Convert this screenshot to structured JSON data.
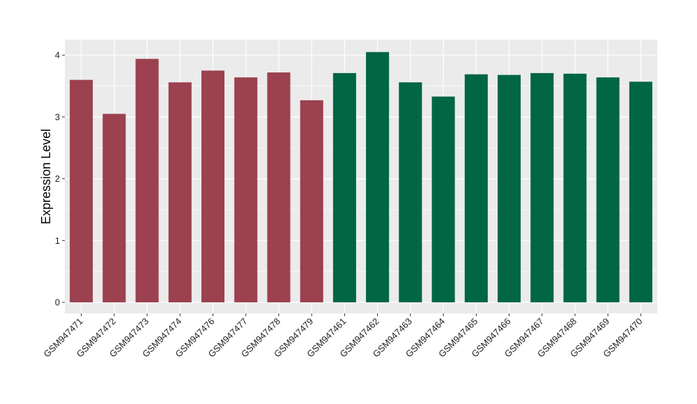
{
  "chart_data": {
    "type": "bar",
    "title": "",
    "xlabel": "",
    "ylabel": "Expression Level",
    "ylim": [
      -0.18,
      4.25
    ],
    "yticks": [
      0,
      1,
      2,
      3,
      4
    ],
    "grid": true,
    "legend": "none",
    "colors": {
      "group1": "#9b414f",
      "group2": "#006644",
      "panel": "#ebebeb",
      "grid": "#ffffff"
    },
    "categories": [
      "GSM947471",
      "GSM947472",
      "GSM947473",
      "GSM947474",
      "GSM947476",
      "GSM947477",
      "GSM947478",
      "GSM947479",
      "GSM947461",
      "GSM947462",
      "GSM947463",
      "GSM947464",
      "GSM947465",
      "GSM947466",
      "GSM947467",
      "GSM947468",
      "GSM947469",
      "GSM947470"
    ],
    "values": [
      3.6,
      3.05,
      3.94,
      3.56,
      3.75,
      3.64,
      3.72,
      3.27,
      3.71,
      4.05,
      3.56,
      3.33,
      3.69,
      3.68,
      3.71,
      3.7,
      3.64,
      3.57
    ],
    "groups": [
      "group1",
      "group1",
      "group1",
      "group1",
      "group1",
      "group1",
      "group1",
      "group1",
      "group2",
      "group2",
      "group2",
      "group2",
      "group2",
      "group2",
      "group2",
      "group2",
      "group2",
      "group2"
    ]
  }
}
